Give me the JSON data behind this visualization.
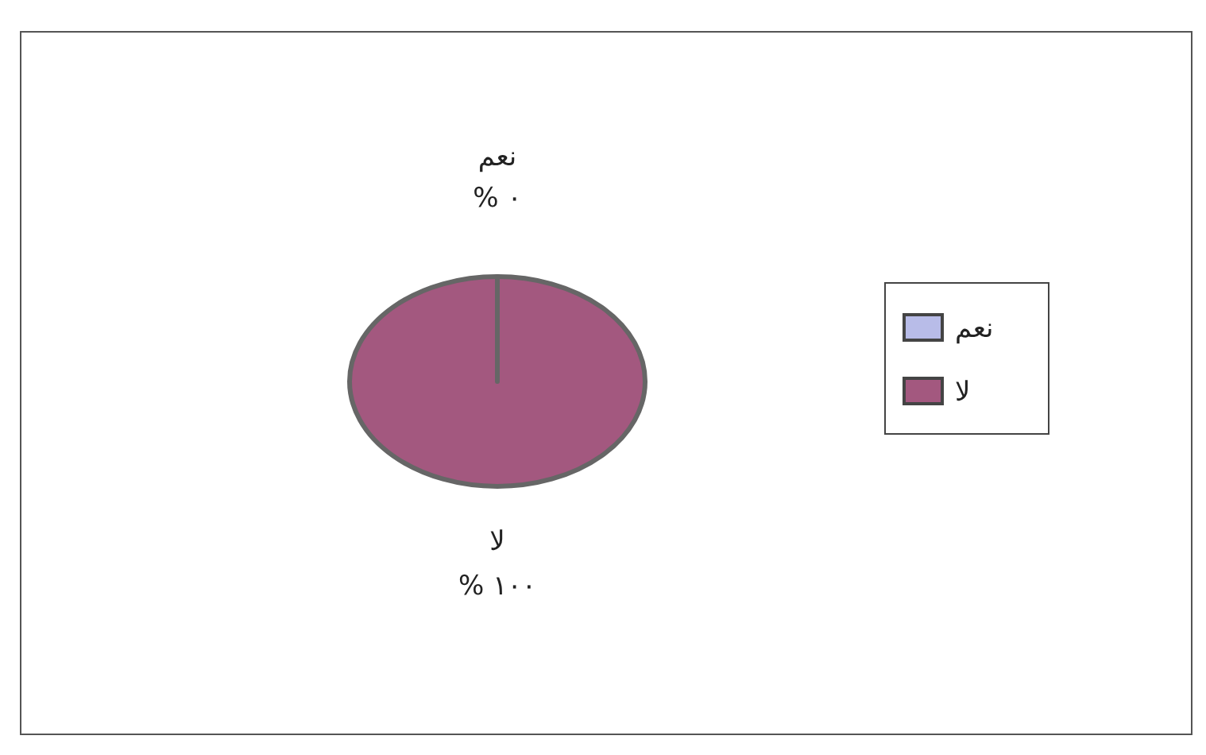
{
  "chart_data": {
    "type": "pie",
    "categories": [
      "نعم",
      "لا"
    ],
    "values": [
      0,
      100
    ],
    "colors": [
      "#b8bce8",
      "#a3587f"
    ],
    "value_labels": [
      "% ٠",
      "% ١٠٠"
    ],
    "legend": "right"
  }
}
